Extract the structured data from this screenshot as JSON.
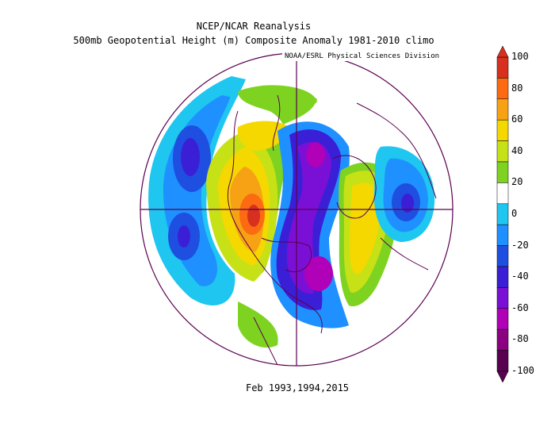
{
  "header": {
    "line1": "NCEP/NCAR Reanalysis",
    "line2": "500mb Geopotential Height (m) Composite Anomaly 1981-2010 climo"
  },
  "credit": "NOAA/ESRL Physical Sciences Division",
  "subtitle": "Feb 1993,1994,2015",
  "colorbar": {
    "labels": [
      "100",
      "80",
      "60",
      "40",
      "20",
      "0",
      "-20",
      "-40",
      "-60",
      "-80",
      "-100"
    ],
    "colors": [
      "#d7301f",
      "#fc6a12",
      "#f7a215",
      "#f5d800",
      "#c7e117",
      "#7ed321",
      "#ffffff",
      "#1ec6f0",
      "#1e90ff",
      "#1f4fe0",
      "#3b1fd6",
      "#7a10d6",
      "#b000b8",
      "#8a0080",
      "#5a0050"
    ]
  }
}
